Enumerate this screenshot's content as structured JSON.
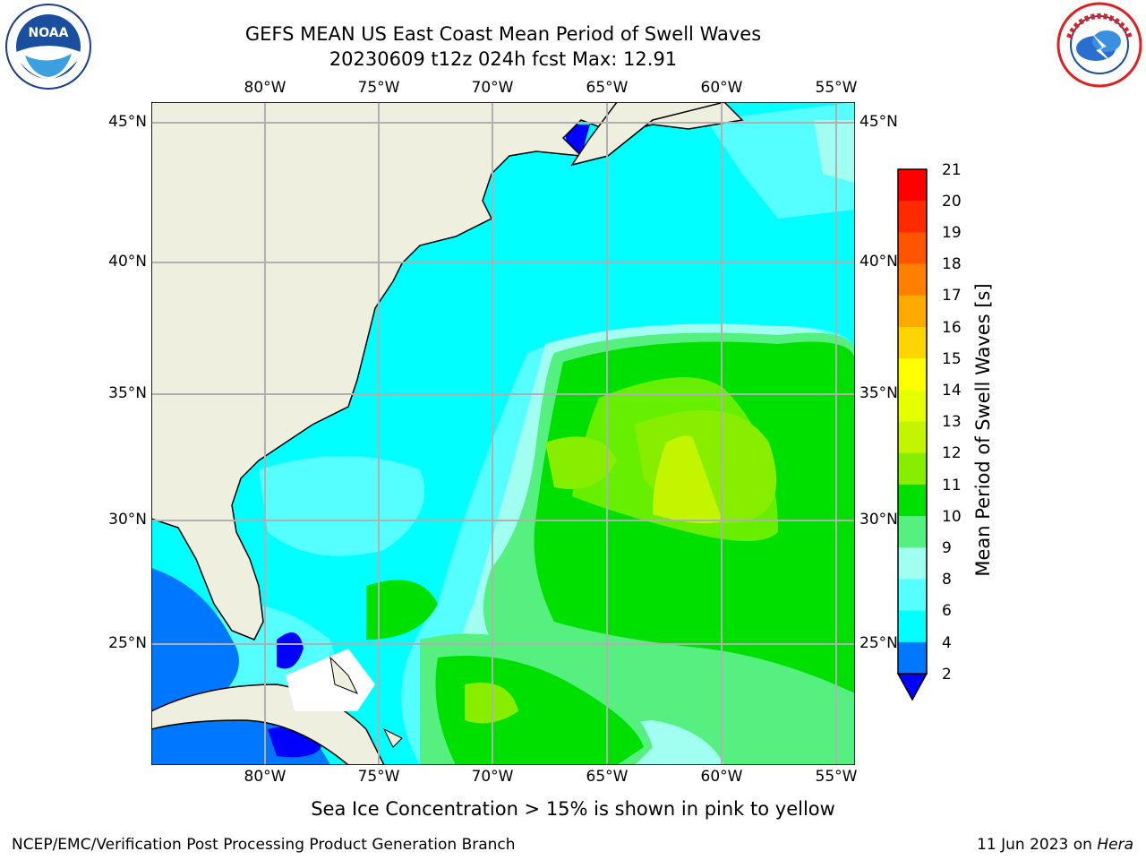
{
  "title": {
    "line1": "GEFS MEAN US East Coast Mean Period of Swell Waves",
    "line2": "20230609 t12z 024h fcst   Max: 12.91"
  },
  "logos": {
    "left": "noaa-logo",
    "right": "nws-logo"
  },
  "map": {
    "lon_labels": [
      "80°W",
      "75°W",
      "70°W",
      "65°W",
      "60°W",
      "55°W"
    ],
    "lat_labels": [
      "45°N",
      "40°N",
      "35°N",
      "30°N",
      "25°N"
    ]
  },
  "colorbar": {
    "label": "Mean Period of Swell Waves [s]",
    "ticks": [
      "21",
      "20",
      "19",
      "18",
      "17",
      "16",
      "15",
      "14",
      "13",
      "12",
      "11",
      "10",
      "9",
      "8",
      "6",
      "4",
      "2"
    ],
    "colors": [
      "#ff0000",
      "#ff2a00",
      "#ff5500",
      "#ff7f00",
      "#ffaa00",
      "#ffd400",
      "#ffff00",
      "#e6ff00",
      "#c3f500",
      "#88ee00",
      "#00e000",
      "#55f080",
      "#a0fff0",
      "#55ffff",
      "#00ffff",
      "#0077ff"
    ],
    "under_color": "#0000ff"
  },
  "subnote": "Sea Ice Concentration > 15% is shown in pink to yellow",
  "footer": {
    "left": "NCEP/EMC/Verification Post Processing Product Generation Branch",
    "right_prefix": "11 Jun 2023 on ",
    "right_host": "Hera"
  }
}
